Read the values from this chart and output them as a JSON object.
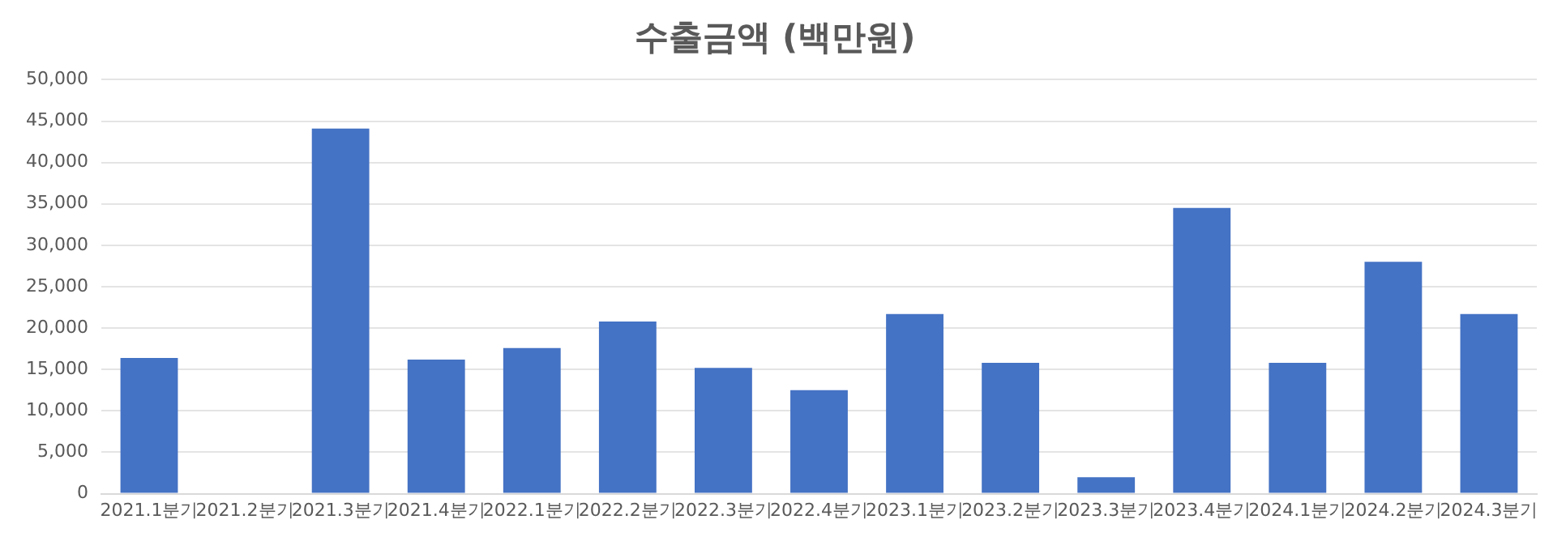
{
  "chart_data": {
    "type": "bar",
    "title": "수출금액 (백만원)",
    "categories": [
      "2021.1분기",
      "2021.2분기",
      "2021.3분기",
      "2021.4분기",
      "2022.1분기",
      "2022.2분기",
      "2022.3분기",
      "2022.4분기",
      "2023.1분기",
      "2023.2분기",
      "2023.3분기",
      "2023.4분기",
      "2024.1분기",
      "2024.2분기",
      "2024.3분기"
    ],
    "values": [
      16400,
      0,
      44100,
      16200,
      17600,
      20800,
      15200,
      12500,
      21700,
      15800,
      2000,
      34500,
      15800,
      28000,
      21700
    ],
    "color": "#4472c4",
    "ylim": [
      0,
      50000
    ],
    "yticks": [
      {
        "value": 0,
        "label": "0"
      },
      {
        "value": 5000,
        "label": "5,000"
      },
      {
        "value": 10000,
        "label": "10,000"
      },
      {
        "value": 15000,
        "label": "15,000"
      },
      {
        "value": 20000,
        "label": "20,000"
      },
      {
        "value": 25000,
        "label": "25,000"
      },
      {
        "value": 30000,
        "label": "30,000"
      },
      {
        "value": 35000,
        "label": "35,000"
      },
      {
        "value": 40000,
        "label": "40,000"
      },
      {
        "value": 45000,
        "label": "45,000"
      },
      {
        "value": 50000,
        "label": "50,000"
      }
    ],
    "grid": "y",
    "legend": false
  }
}
